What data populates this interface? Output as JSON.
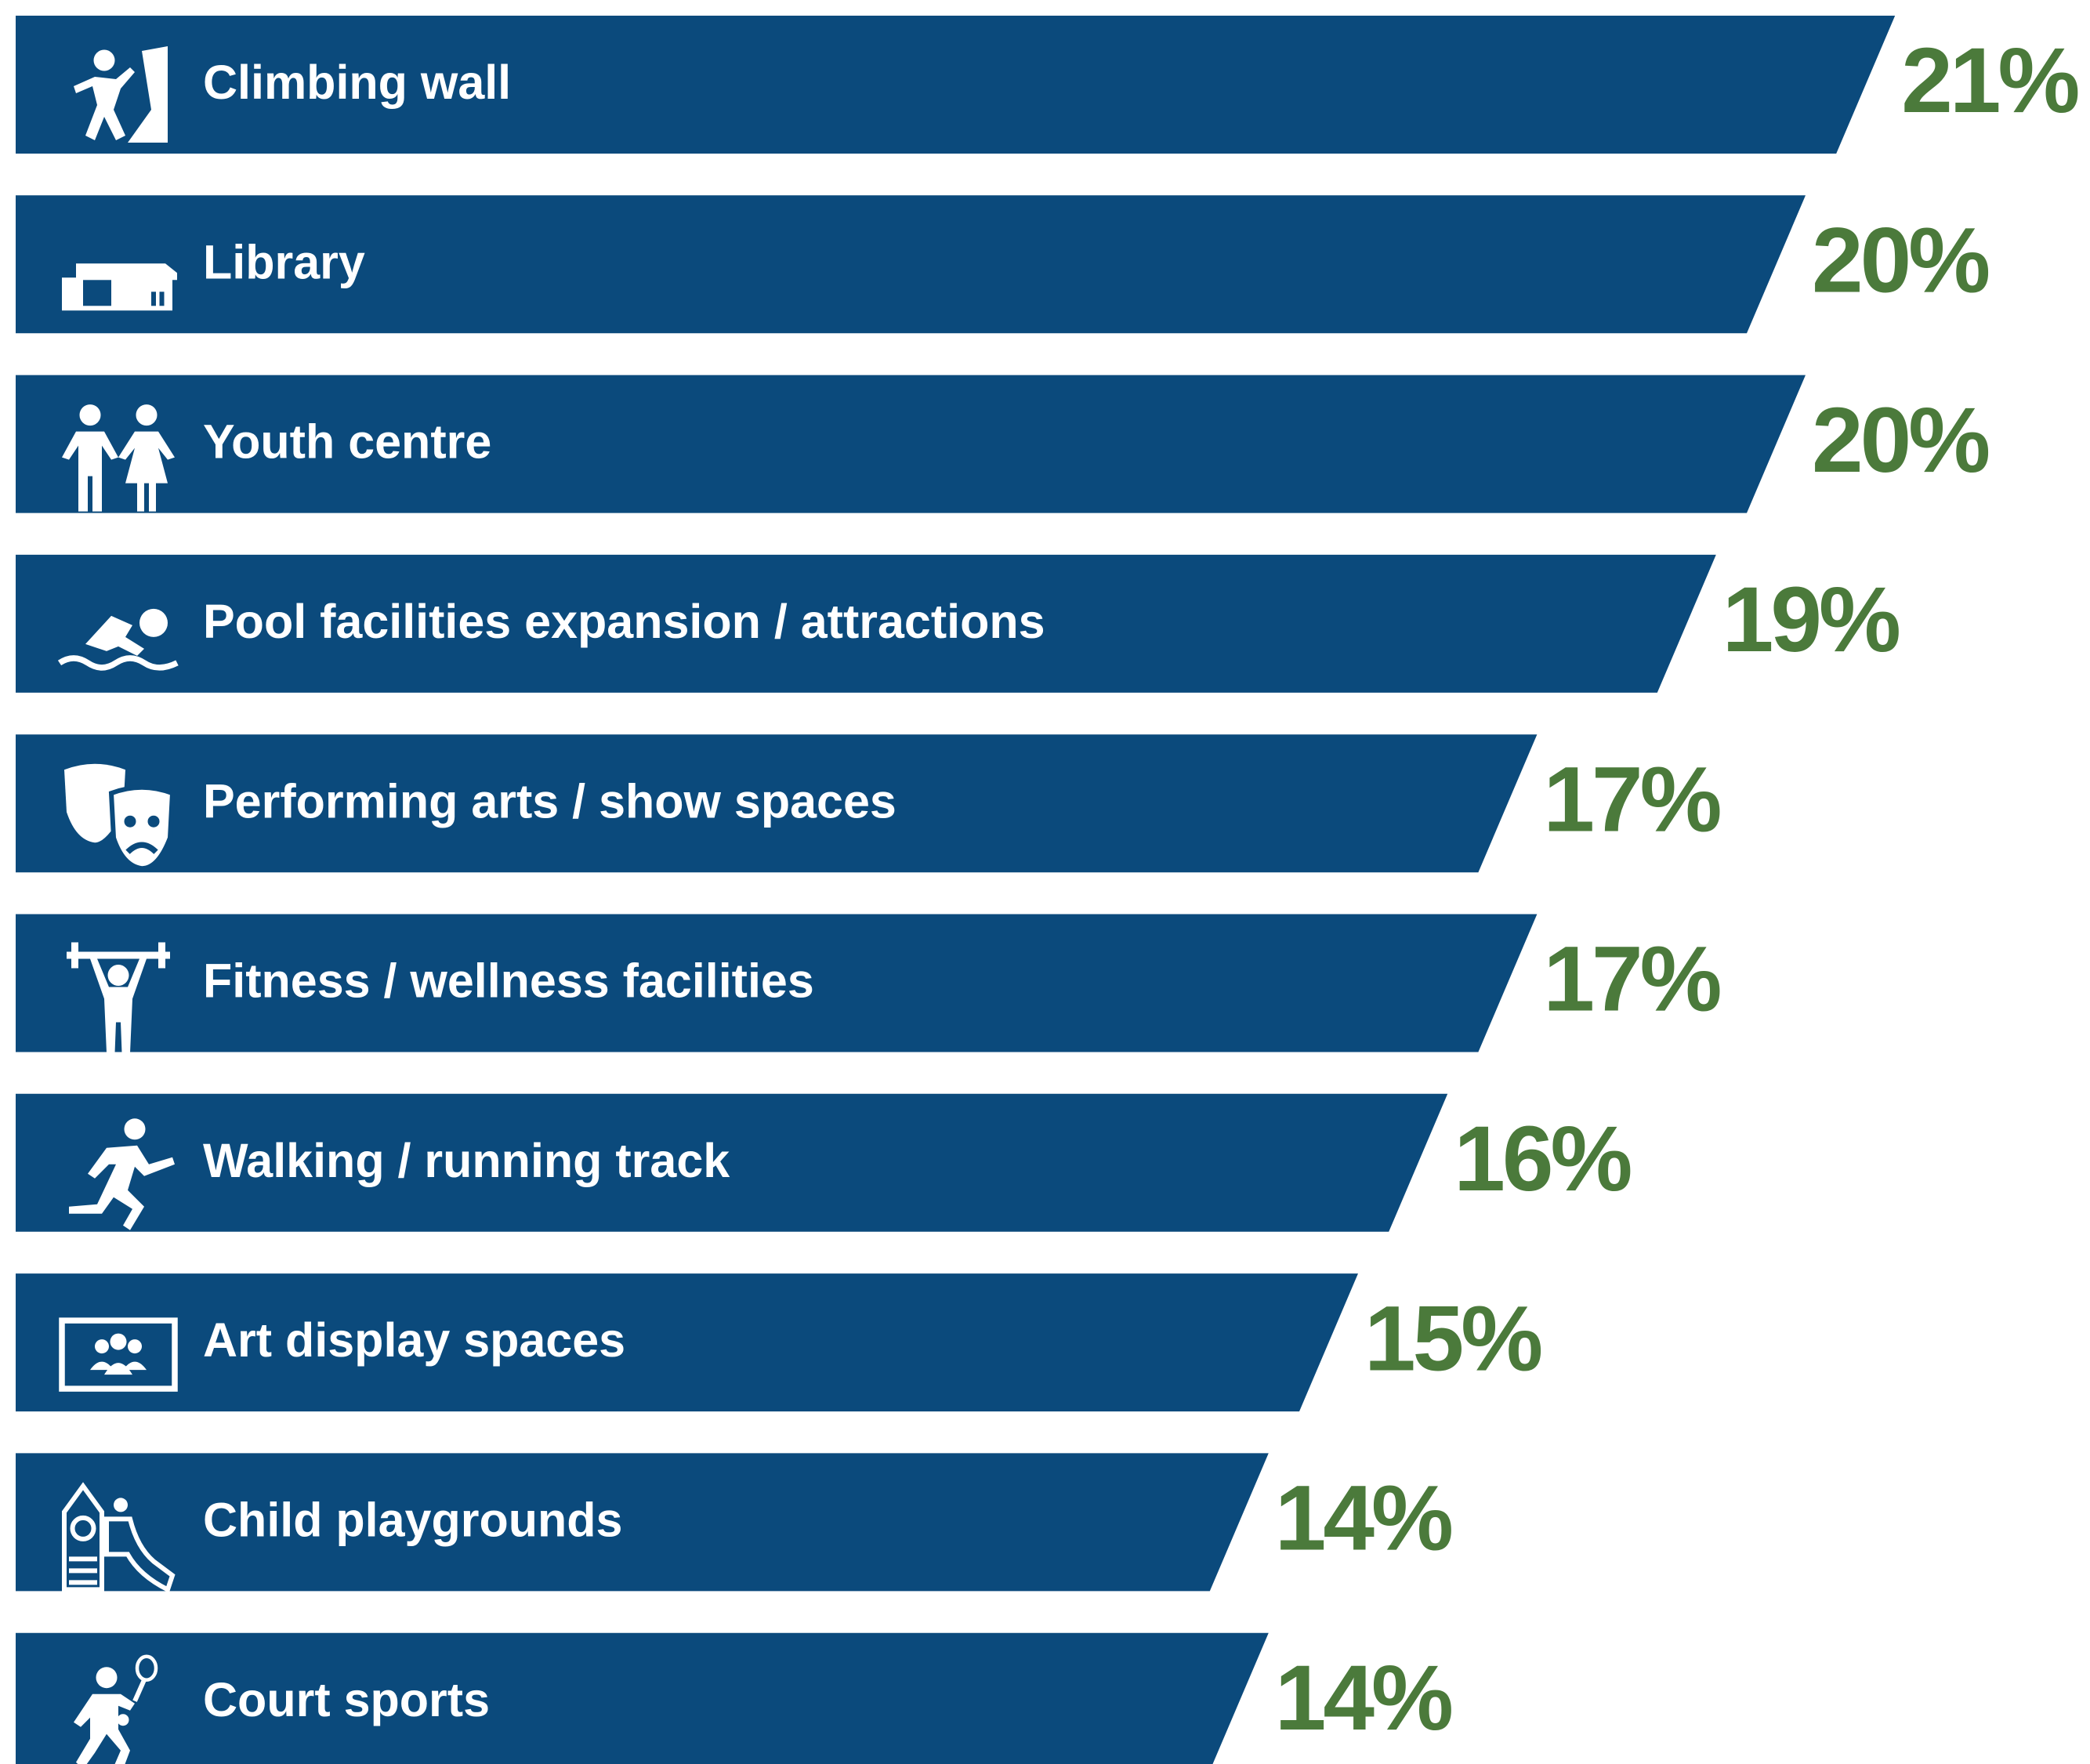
{
  "chart_data": {
    "type": "bar",
    "orientation": "horizontal",
    "categories": [
      "Climbing wall",
      "Library",
      "Youth centre",
      "Pool facilities  expansion / attractions",
      "Performing arts / show spaces",
      "Fitness / wellness facilities",
      "Walking / running track",
      "Art display spaces",
      "Child playgrounds",
      "Court sports"
    ],
    "values": [
      21,
      20,
      20,
      19,
      17,
      17,
      16,
      15,
      14,
      14
    ],
    "value_labels": [
      "21%",
      "20%",
      "20%",
      "19%",
      "17%",
      "17%",
      "16%",
      "15%",
      "14%",
      "14%"
    ],
    "color": "#0b4a7c",
    "label_color": "#4b7a3b"
  }
}
